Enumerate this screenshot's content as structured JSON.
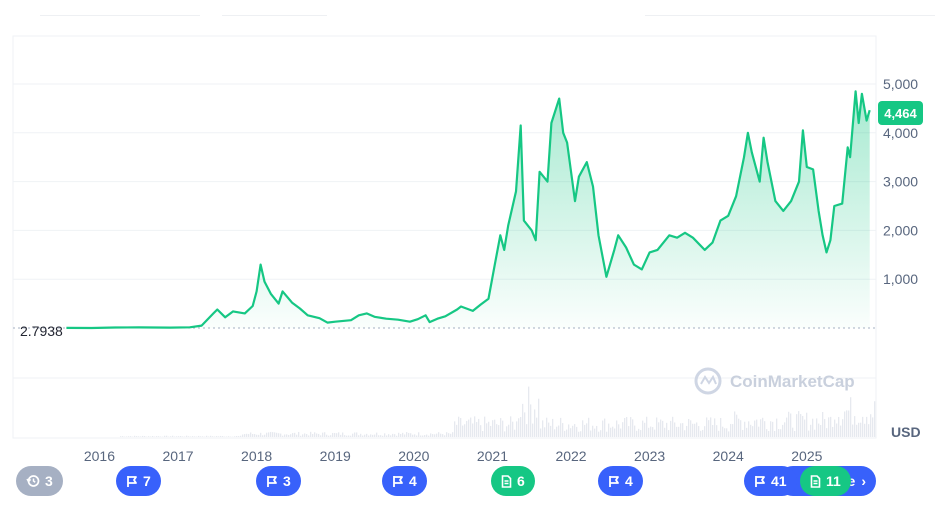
{
  "chart_data": {
    "type": "area",
    "currency_label": "USD",
    "watermark": "CoinMarketCap",
    "baseline_label": "2.7938",
    "current_price_label": "4,464",
    "y_ticks": [
      "1,000",
      "2,000",
      "3,000",
      "4,000",
      "5,000"
    ],
    "y_tick_values": [
      1000,
      2000,
      3000,
      4000,
      5000
    ],
    "ylim": [
      0,
      5300
    ],
    "x_ticks": [
      "2016",
      "2017",
      "2018",
      "2019",
      "2020",
      "2021",
      "2022",
      "2023",
      "2024",
      "2025"
    ],
    "x_tick_values": [
      2016,
      2017,
      2018,
      2019,
      2020,
      2021,
      2022,
      2023,
      2024,
      2025
    ],
    "xlim": [
      2015.6,
      2025.88
    ],
    "grid": true,
    "colors": {
      "line": "#16c784",
      "badge_blue": "#3861fb",
      "badge_green": "#16c784",
      "badge_grey": "#a6b0c3",
      "axis_text": "#58667e"
    },
    "series": [
      {
        "values": [
          [
            2015.58,
            2.8
          ],
          [
            2015.9,
            1
          ],
          [
            2016.2,
            10
          ],
          [
            2016.5,
            12
          ],
          [
            2016.9,
            8
          ],
          [
            2017.15,
            15
          ],
          [
            2017.3,
            50
          ],
          [
            2017.45,
            300
          ],
          [
            2017.5,
            380
          ],
          [
            2017.6,
            220
          ],
          [
            2017.7,
            340
          ],
          [
            2017.85,
            300
          ],
          [
            2017.95,
            450
          ],
          [
            2018.0,
            750
          ],
          [
            2018.05,
            1300
          ],
          [
            2018.1,
            950
          ],
          [
            2018.18,
            700
          ],
          [
            2018.28,
            500
          ],
          [
            2018.33,
            750
          ],
          [
            2018.45,
            520
          ],
          [
            2018.55,
            400
          ],
          [
            2018.65,
            260
          ],
          [
            2018.8,
            200
          ],
          [
            2018.9,
            110
          ],
          [
            2019.0,
            130
          ],
          [
            2019.2,
            160
          ],
          [
            2019.3,
            260
          ],
          [
            2019.4,
            300
          ],
          [
            2019.5,
            230
          ],
          [
            2019.65,
            190
          ],
          [
            2019.8,
            170
          ],
          [
            2019.95,
            130
          ],
          [
            2020.05,
            180
          ],
          [
            2020.15,
            260
          ],
          [
            2020.2,
            120
          ],
          [
            2020.3,
            190
          ],
          [
            2020.4,
            240
          ],
          [
            2020.55,
            380
          ],
          [
            2020.6,
            440
          ],
          [
            2020.75,
            350
          ],
          [
            2020.85,
            480
          ],
          [
            2020.95,
            600
          ],
          [
            2021.03,
            1300
          ],
          [
            2021.1,
            1900
          ],
          [
            2021.15,
            1600
          ],
          [
            2021.2,
            2100
          ],
          [
            2021.3,
            2800
          ],
          [
            2021.36,
            4150
          ],
          [
            2021.4,
            2200
          ],
          [
            2021.5,
            2000
          ],
          [
            2021.55,
            1800
          ],
          [
            2021.6,
            3200
          ],
          [
            2021.7,
            3000
          ],
          [
            2021.75,
            4200
          ],
          [
            2021.85,
            4700
          ],
          [
            2021.9,
            4000
          ],
          [
            2021.95,
            3800
          ],
          [
            2022.05,
            2600
          ],
          [
            2022.1,
            3100
          ],
          [
            2022.2,
            3400
          ],
          [
            2022.28,
            2900
          ],
          [
            2022.35,
            1900
          ],
          [
            2022.45,
            1050
          ],
          [
            2022.55,
            1600
          ],
          [
            2022.6,
            1900
          ],
          [
            2022.7,
            1650
          ],
          [
            2022.8,
            1300
          ],
          [
            2022.9,
            1200
          ],
          [
            2023.0,
            1550
          ],
          [
            2023.1,
            1600
          ],
          [
            2023.25,
            1900
          ],
          [
            2023.35,
            1850
          ],
          [
            2023.45,
            1950
          ],
          [
            2023.55,
            1850
          ],
          [
            2023.7,
            1600
          ],
          [
            2023.8,
            1750
          ],
          [
            2023.9,
            2200
          ],
          [
            2024.0,
            2300
          ],
          [
            2024.1,
            2700
          ],
          [
            2024.2,
            3500
          ],
          [
            2024.25,
            4000
          ],
          [
            2024.3,
            3600
          ],
          [
            2024.4,
            3000
          ],
          [
            2024.45,
            3900
          ],
          [
            2024.5,
            3400
          ],
          [
            2024.6,
            2600
          ],
          [
            2024.7,
            2400
          ],
          [
            2024.8,
            2600
          ],
          [
            2024.9,
            3000
          ],
          [
            2024.95,
            4050
          ],
          [
            2025.0,
            3300
          ],
          [
            2025.08,
            3250
          ],
          [
            2025.15,
            2400
          ],
          [
            2025.2,
            1900
          ],
          [
            2025.25,
            1550
          ],
          [
            2025.3,
            1800
          ],
          [
            2025.35,
            2500
          ],
          [
            2025.45,
            2550
          ],
          [
            2025.52,
            3700
          ],
          [
            2025.55,
            3500
          ],
          [
            2025.62,
            4850
          ],
          [
            2025.66,
            4200
          ],
          [
            2025.7,
            4800
          ],
          [
            2025.76,
            4250
          ],
          [
            2025.8,
            4464
          ]
        ]
      }
    ],
    "events": [
      {
        "icon": "history-icon",
        "count": "3",
        "color": "grey"
      },
      {
        "icon": "flag-icon",
        "count": "7",
        "color": "blue"
      },
      {
        "icon": "flag-icon",
        "count": "3",
        "color": "blue"
      },
      {
        "icon": "flag-icon",
        "count": "4",
        "color": "blue"
      },
      {
        "icon": "document-icon",
        "count": "6",
        "color": "green"
      },
      {
        "icon": "flag-icon",
        "count": "4",
        "color": "blue"
      },
      {
        "icon": "flag-icon",
        "count": "41",
        "color": "blue"
      },
      {
        "icon": "document-icon",
        "count": "11",
        "color": "green"
      }
    ],
    "more_button_label": "e"
  }
}
